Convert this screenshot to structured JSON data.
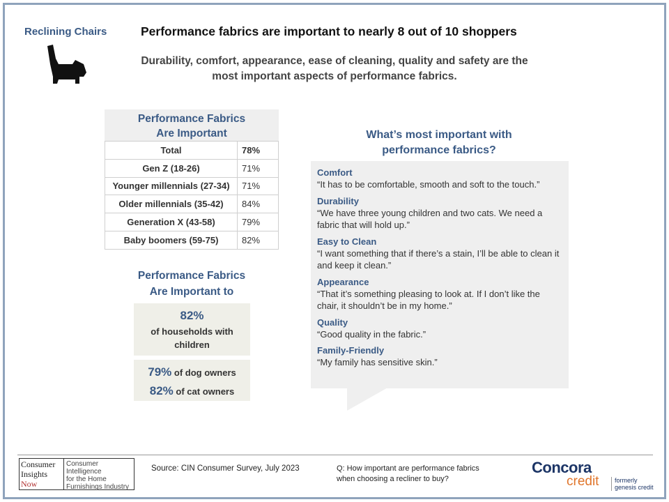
{
  "header": {
    "section_label": "Reclining Chairs",
    "headline": "Performance fabrics are important to nearly 8 out of 10 shoppers",
    "subhead": "Durability, comfort, appearance, ease of cleaning, quality and safety are the most important aspects of performance fabrics."
  },
  "importance_table": {
    "title_line1": "Performance Fabrics",
    "title_line2": "Are Important",
    "rows": [
      {
        "label": "Total",
        "value": "78%"
      },
      {
        "label": "Gen Z (18-26)",
        "value": "71%"
      },
      {
        "label": "Younger millennials (27-34)",
        "value": "71%"
      },
      {
        "label": "Older millennials (35-42)",
        "value": "84%"
      },
      {
        "label": "Generation X (43-58)",
        "value": "79%"
      },
      {
        "label": "Baby boomers (59-75)",
        "value": "82%"
      }
    ]
  },
  "important_to": {
    "title_line1": "Performance Fabrics",
    "title_line2": "Are Important to",
    "households_pct": "82%",
    "households_desc_line1": "of households with",
    "households_desc_line2": "children",
    "dog_pct": "79%",
    "dog_desc": "of dog owners",
    "cat_pct": "82%",
    "cat_desc": "of cat owners"
  },
  "quotes": {
    "title_line1": "What’s most important with",
    "title_line2": "performance fabrics?",
    "items": [
      {
        "head": "Comfort",
        "text": "“It has to be comfortable, smooth and soft to the touch.”"
      },
      {
        "head": "Durability",
        "text": "“We have three young children and two cats. We need a fabric that will hold up.”"
      },
      {
        "head": "Easy to Clean",
        "text": "“I want something that if there’s a stain, I’ll be able to clean it and keep it clean.”"
      },
      {
        "head": "Appearance",
        "text": "“That it’s something pleasing to look at. If I don’t like the chair, it shouldn’t be in my home.”"
      },
      {
        "head": "Quality",
        "text": "“Good quality in the fabric.”"
      },
      {
        "head": "Family-Friendly",
        "text": "“My family has sensitive skin.”"
      }
    ]
  },
  "footer": {
    "cin_logo_line1": "Consumer",
    "cin_logo_line2": "Insights",
    "cin_logo_line3": "Now",
    "cin_tagline_line1": "Consumer Intelligence",
    "cin_tagline_line2": "for the Home",
    "cin_tagline_line3": "Furnishings Industry",
    "source": "Source: CIN Consumer Survey, July 2023",
    "question_line1": "Q: How important are performance fabrics",
    "question_line2": "when choosing a recliner to buy?",
    "concora_name": "Concora",
    "concora_credit": "credit",
    "concora_former_line1": "formerly",
    "concora_former_line2": "genesis credit"
  },
  "colors": {
    "accent_blue": "#3a5a85",
    "border_blue": "#8fa3bc",
    "concora_navy": "#1c3566",
    "concora_orange": "#e0752b"
  },
  "icons": {
    "chair": "recliner-chair-icon"
  }
}
